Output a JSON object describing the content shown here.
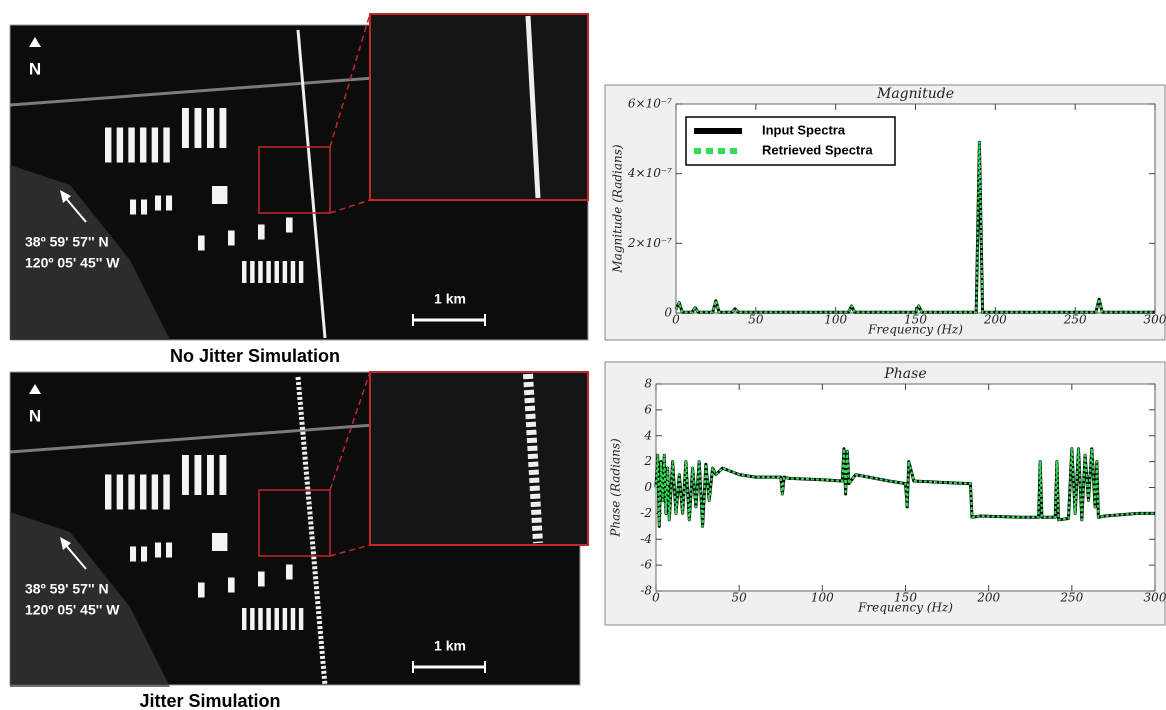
{
  "images": [
    {
      "caption": "No Jitter Simulation",
      "north": "N",
      "coords": [
        "38º 59' 57'' N",
        "120º 05' 45'' W"
      ],
      "scale": "1 km"
    },
    {
      "caption": "Jitter Simulation",
      "north": "N",
      "coords": [
        "38º 59' 57'' N",
        "120º 05' 45'' W"
      ],
      "scale": "1 km"
    }
  ],
  "chart_data": [
    {
      "type": "line",
      "title": "Magnitude",
      "xlabel": "Frequency (Hz)",
      "ylabel": "Magnitude (Radians)",
      "x": [
        0,
        2,
        4,
        10,
        12,
        14,
        23,
        25,
        27,
        35,
        37,
        39,
        108,
        110,
        112,
        150,
        152,
        154,
        188,
        190,
        192,
        263,
        265,
        267,
        300
      ],
      "series": [
        {
          "name": "Input Spectra",
          "color": "#000000",
          "values": [
            1e-08,
            3e-08,
            2e-09,
            2e-09,
            1.5e-08,
            2e-09,
            2e-09,
            3.5e-08,
            2e-09,
            2e-09,
            1.2e-08,
            2e-09,
            2e-09,
            2e-08,
            2e-09,
            2e-09,
            2e-08,
            2e-09,
            2e-09,
            4.9e-07,
            2e-09,
            2e-09,
            4e-08,
            2e-09,
            2e-09
          ]
        },
        {
          "name": "Retrieved Spectra",
          "color": "#33dd55",
          "dashed": true,
          "values": [
            1e-08,
            3e-08,
            2e-09,
            2e-09,
            1.5e-08,
            2e-09,
            2e-09,
            3.5e-08,
            2e-09,
            2e-09,
            1.2e-08,
            2e-09,
            2e-09,
            2e-08,
            2e-09,
            2e-09,
            2e-08,
            2e-09,
            2e-09,
            4.9e-07,
            2e-09,
            2e-09,
            4e-08,
            2e-09,
            2e-09
          ]
        }
      ],
      "xlim": [
        0,
        300
      ],
      "ylim": [
        0,
        6e-07
      ],
      "xticks": [
        0,
        50,
        100,
        150,
        200,
        250,
        300
      ],
      "yticks": [
        0,
        {
          "value": 2e-07,
          "label": "2×10⁻⁷"
        },
        {
          "value": 4e-07,
          "label": "4×10⁻⁷"
        },
        {
          "value": 6e-07,
          "label": "6×10⁻⁷"
        }
      ],
      "legend": "upper left"
    },
    {
      "type": "line",
      "title": "Phase",
      "xlabel": "Frequency (Hz)",
      "ylabel": "Phase (Radians)",
      "x": [
        0,
        1,
        2,
        3,
        4,
        5,
        6,
        7,
        8,
        10,
        12,
        14,
        16,
        18,
        20,
        22,
        24,
        26,
        28,
        30,
        32,
        34,
        36,
        40,
        50,
        60,
        75,
        76,
        77,
        80,
        100,
        112,
        113,
        114,
        115,
        116,
        120,
        140,
        150,
        151,
        152,
        155,
        170,
        188,
        189,
        190,
        195,
        220,
        230,
        231,
        232,
        240,
        241,
        242,
        248,
        250,
        252,
        254,
        256,
        258,
        260,
        262,
        264,
        265,
        266,
        270,
        290,
        300
      ],
      "series": [
        {
          "color": "#000000",
          "values": [
            0,
            2.5,
            -3,
            2,
            -1,
            2.5,
            -2,
            1.5,
            -2.5,
            2,
            -2,
            1,
            -2,
            2,
            -2.5,
            1.5,
            -1.5,
            2,
            -3,
            1.8,
            -1,
            1.5,
            1,
            1.5,
            1,
            0.8,
            0.8,
            -0.5,
            0.8,
            0.7,
            0.6,
            0.5,
            3,
            -0.5,
            2.8,
            0.3,
            1,
            0.5,
            0.3,
            -1.5,
            2,
            0.5,
            0.4,
            0.3,
            0.3,
            -2.3,
            -2.2,
            -2.3,
            -2.3,
            2,
            -2.3,
            -2.3,
            2,
            -2.5,
            -2.4,
            3,
            -2,
            3,
            -2.5,
            2.5,
            -1,
            3,
            -1.5,
            2,
            -2.3,
            -2.2,
            -2,
            -2
          ]
        },
        {
          "color": "#33dd55",
          "dashed": true,
          "values": [
            0,
            2.5,
            -3,
            2,
            -1,
            2.5,
            -2,
            1.5,
            -2.5,
            2,
            -2,
            1,
            -2,
            2,
            -2.5,
            1.5,
            -1.5,
            2,
            -3,
            1.8,
            -1,
            1.5,
            1,
            1.5,
            1,
            0.8,
            0.8,
            -0.5,
            0.8,
            0.7,
            0.6,
            0.5,
            3,
            -0.5,
            2.8,
            0.3,
            1,
            0.5,
            0.3,
            -1.5,
            2,
            0.5,
            0.4,
            0.3,
            0.3,
            -2.3,
            -2.2,
            -2.3,
            -2.3,
            2,
            -2.3,
            -2.3,
            2,
            -2.5,
            -2.4,
            3,
            -2,
            3,
            -2.5,
            2.5,
            -1,
            3,
            -1.5,
            2,
            -2.3,
            -2.2,
            -2,
            -2
          ]
        }
      ],
      "xlim": [
        0,
        300
      ],
      "ylim": [
        -8,
        8
      ],
      "xticks": [
        0,
        50,
        100,
        150,
        200,
        250,
        300
      ],
      "yticks": [
        -8,
        -6,
        -4,
        -2,
        0,
        2,
        4,
        6,
        8
      ]
    }
  ]
}
